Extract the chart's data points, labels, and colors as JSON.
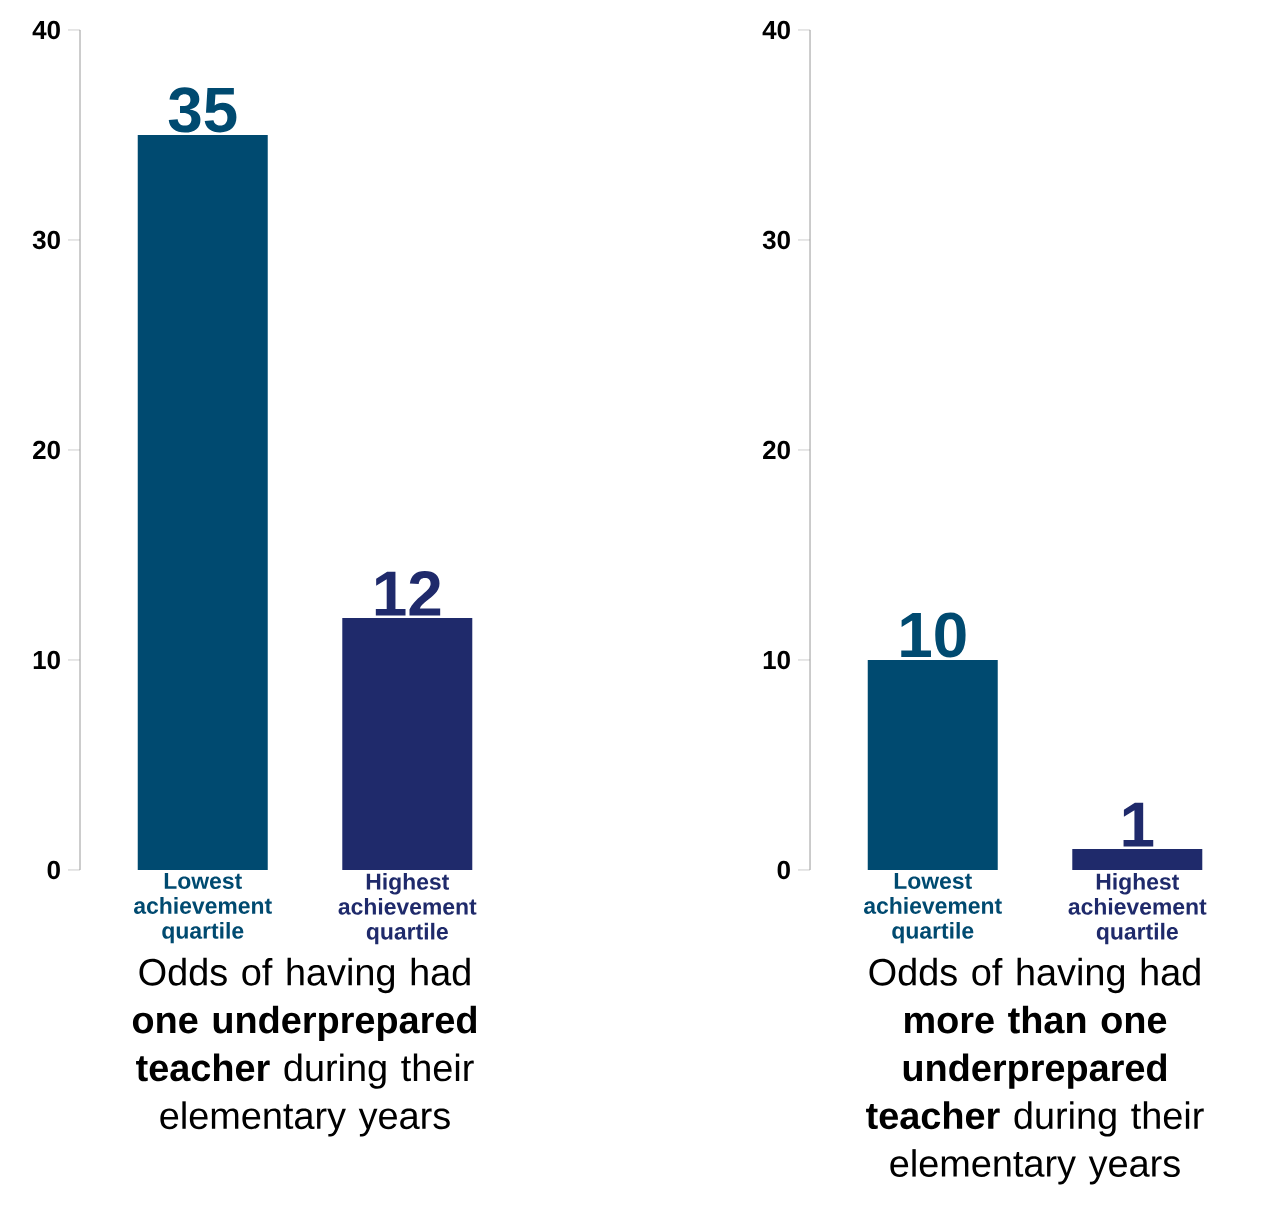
{
  "chart_data": [
    {
      "type": "bar",
      "categories": [
        "Lowest achievement quartile",
        "Highest achievement quartile"
      ],
      "values": [
        35,
        12
      ],
      "colors": [
        "#004a70",
        "#1f2a6b"
      ],
      "ylim": [
        0,
        40
      ],
      "yticks": [
        0,
        10,
        20,
        30,
        40
      ],
      "data_labels": true,
      "xlabel": "Odds of having had **one underprepared teacher** during their elementary years"
    },
    {
      "type": "bar",
      "categories": [
        "Lowest achievement quartile",
        "Highest achievement quartile"
      ],
      "values": [
        10,
        1
      ],
      "colors": [
        "#004a70",
        "#1f2a6b"
      ],
      "ylim": [
        0,
        40
      ],
      "yticks": [
        0,
        10,
        20,
        30,
        40
      ],
      "data_labels": true,
      "xlabel": "Odds of having had **more than one underprepared teacher** during their elementary years"
    }
  ]
}
